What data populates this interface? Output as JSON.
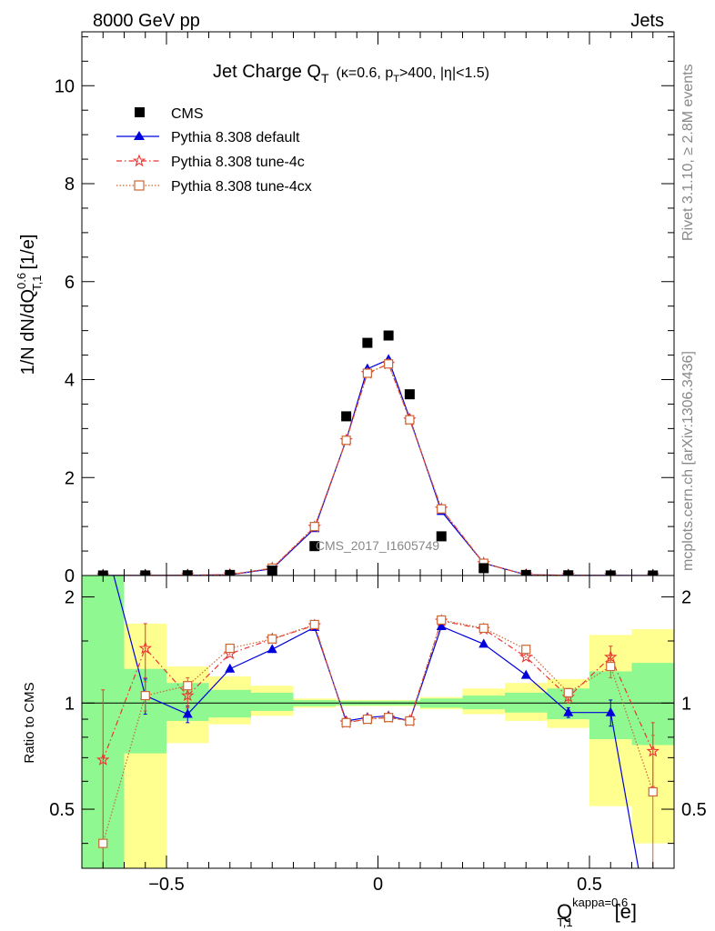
{
  "header": {
    "energy": "8000 GeV pp",
    "process": "Jets"
  },
  "side_text": {
    "rivet": "Rivet 3.1.10, ≥ 2.8M events",
    "source": "mcplots.cern.ch [arXiv:1306.3436]"
  },
  "watermark": "CMS_2017_I1605749",
  "colors": {
    "cms": "#000000",
    "default": "#0000dd",
    "tune4c": "#ee3333",
    "tune4cx": "#cc6633",
    "band_green": "#90f890",
    "band_yellow": "#ffff90"
  },
  "chart_data": {
    "type": "scatter",
    "title": "Jet Charge Q",
    "title_sub": "T",
    "title_detail": "(κ=0.6, p",
    "title_detail_sub": "T",
    "title_detail_rest": ">400, |η|<1.5)",
    "xlabel": "Q",
    "xlabel_sup": "kappa=0.6",
    "xlabel_sub": "T,1",
    "xlabel_unit": "[e]",
    "ylabel": "1/N dN/dQ",
    "ylabel_sup": "0.6",
    "ylabel_sub": "T,1",
    "ylabel_unit": "[1/e]",
    "ratio_ylabel": "Ratio to CMS",
    "xlim": [
      -0.7,
      0.7
    ],
    "ylim": [
      0,
      11.1
    ],
    "ratio_ylim": [
      0.34,
      2.3
    ],
    "ratio_log": true,
    "x_ticks": [
      "−0.5",
      "0",
      "0.5"
    ],
    "x_tick_values": [
      -0.5,
      0,
      0.5
    ],
    "y_ticks": [
      "0",
      "2",
      "4",
      "6",
      "8",
      "10"
    ],
    "y_tick_values": [
      0,
      2,
      4,
      6,
      8,
      10
    ],
    "ratio_ticks": [
      "0.5",
      "1",
      "2"
    ],
    "ratio_tick_values": [
      0.5,
      1,
      2
    ],
    "bin_edges": [
      -0.7,
      -0.6,
      -0.5,
      -0.4,
      -0.3,
      -0.2,
      -0.1,
      -0.05,
      0,
      0.05,
      0.1,
      0.2,
      0.3,
      0.4,
      0.5,
      0.6,
      0.7
    ],
    "x": [
      -0.65,
      -0.55,
      -0.45,
      -0.35,
      -0.25,
      -0.15,
      -0.075,
      -0.025,
      0.025,
      0.075,
      0.15,
      0.25,
      0.35,
      0.45,
      0.55,
      0.65
    ],
    "legend": [
      "CMS",
      "Pythia 8.308 default",
      "Pythia 8.308 tune-4c",
      "Pythia 8.308 tune-4cx"
    ],
    "legend_position": "top-left",
    "cms": [
      0.001,
      0.002,
      0.005,
      0.012,
      0.1,
      0.6,
      3.25,
      4.75,
      4.9,
      3.7,
      0.8,
      0.15,
      0.012,
      0.005,
      0.002,
      0.001
    ],
    "series": [
      {
        "name": "Pythia 8.308 default",
        "values": [
          0.0045,
          0.0021,
          0.0047,
          0.015,
          0.14,
          0.96,
          2.77,
          4.22,
          4.41,
          3.21,
          1.31,
          0.25,
          0.0145,
          0.0047,
          0.0019,
          0.0002
        ],
        "ratio": [
          3.0,
          1.05,
          0.93,
          1.25,
          1.42,
          1.64,
          0.89,
          0.91,
          0.92,
          0.89,
          1.65,
          1.47,
          1.2,
          0.94,
          0.94,
          0.2
        ]
      },
      {
        "name": "Pythia 8.308 tune-4c",
        "values": [
          0.0007,
          0.0028,
          0.0055,
          0.017,
          0.15,
          0.99,
          2.76,
          4.13,
          4.32,
          3.18,
          1.36,
          0.25,
          0.0155,
          0.0053,
          0.0026,
          0.0007
        ],
        "ratio": [
          0.69,
          1.43,
          1.05,
          1.38,
          1.52,
          1.66,
          0.88,
          0.9,
          0.91,
          0.89,
          1.71,
          1.62,
          1.35,
          1.04,
          1.35,
          0.73
        ]
      },
      {
        "name": "Pythia 8.308 tune-4cx",
        "values": [
          0.001,
          0.0021,
          0.0057,
          0.017,
          0.15,
          1.0,
          2.76,
          4.13,
          4.32,
          3.18,
          1.36,
          0.25,
          0.0155,
          0.0053,
          0.0024,
          0.00056
        ],
        "ratio": [
          0.4,
          1.05,
          1.12,
          1.43,
          1.52,
          1.67,
          0.88,
          0.9,
          0.91,
          0.89,
          1.72,
          1.63,
          1.42,
          1.07,
          1.27,
          0.56
        ]
      }
    ],
    "ratio_errors": {
      "default": [
        0,
        0.12,
        0.05,
        0,
        0,
        0,
        0,
        0,
        0,
        0,
        0,
        0,
        0,
        0.03,
        0.08,
        0
      ],
      "tune4c": [
        0.4,
        0.25,
        0.08,
        0,
        0,
        0,
        0,
        0,
        0,
        0,
        0,
        0,
        0,
        0.04,
        0.1,
        0.15
      ],
      "tune4cx": [
        0,
        0.1,
        0.06,
        0,
        0,
        0,
        0,
        0,
        0,
        0,
        0,
        0,
        0,
        0.03,
        0.09,
        0.25
      ]
    },
    "band_green": [
      [
        0.34,
        2.3
      ],
      [
        0.72,
        1.25
      ],
      [
        0.89,
        1.14
      ],
      [
        0.91,
        1.09
      ],
      [
        0.95,
        1.07
      ],
      [
        0.98,
        1.02
      ],
      [
        0.985,
        1.015
      ],
      [
        0.985,
        1.015
      ],
      [
        0.985,
        1.015
      ],
      [
        0.985,
        1.015
      ],
      [
        0.97,
        1.03
      ],
      [
        0.96,
        1.05
      ],
      [
        0.94,
        1.07
      ],
      [
        0.9,
        1.1
      ],
      [
        0.79,
        1.23
      ],
      [
        0.76,
        1.3
      ]
    ],
    "band_yellow": [
      [
        0.34,
        2.3
      ],
      [
        0.34,
        1.68
      ],
      [
        0.77,
        1.27
      ],
      [
        0.87,
        1.19
      ],
      [
        0.92,
        1.12
      ],
      [
        0.97,
        1.03
      ],
      [
        0.98,
        1.02
      ],
      [
        0.98,
        1.02
      ],
      [
        0.98,
        1.02
      ],
      [
        0.98,
        1.02
      ],
      [
        0.96,
        1.04
      ],
      [
        0.93,
        1.1
      ],
      [
        0.89,
        1.14
      ],
      [
        0.85,
        1.17
      ],
      [
        0.51,
        1.56
      ],
      [
        0.4,
        1.62
      ]
    ]
  }
}
